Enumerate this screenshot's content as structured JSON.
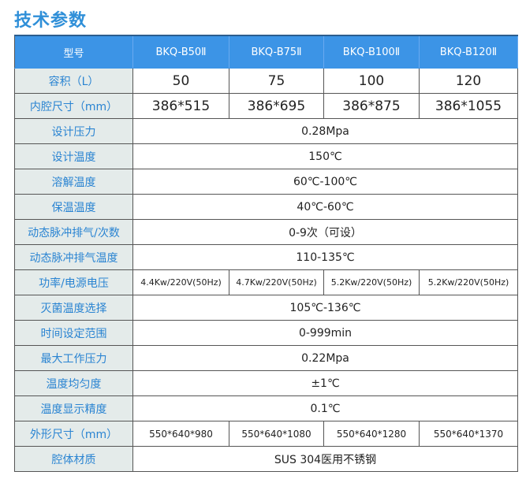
{
  "title": "技术参数",
  "header": [
    "型号",
    "BKQ-B50Ⅱ",
    "BKQ-B75Ⅱ",
    "BKQ-B100Ⅱ",
    "BKQ-B120Ⅱ"
  ],
  "rows": [
    {
      "label": "容积（L）",
      "values": [
        "50",
        "75",
        "100",
        "120"
      ]
    },
    {
      "label": "内腔尺寸（mm）",
      "values": [
        "386*515",
        "386*695",
        "386*875",
        "386*1055"
      ]
    },
    {
      "label": "设计压力",
      "value": "0.28Mpa"
    },
    {
      "label": "设计温度",
      "value": "150℃"
    },
    {
      "label": "溶解温度",
      "value": "60℃-100℃"
    },
    {
      "label": "保温温度",
      "value": "40℃-60℃"
    },
    {
      "label": "动态脉冲排气/次数",
      "value": "0-9次（可设）"
    },
    {
      "label": "动态脉冲排气温度",
      "value": "110-135℃"
    },
    {
      "label": "功率/电源电压",
      "values": [
        "4.4Kw/220V(50Hz)",
        "4.7Kw/220V(50Hz)",
        "5.2Kw/220V(50Hz)",
        "5.2Kw/220V(50Hz)"
      ]
    },
    {
      "label": "灭菌温度选择",
      "value": "105℃-136℃"
    },
    {
      "label": "时间设定范围",
      "value": "0-999min"
    },
    {
      "label": "最大工作压力",
      "value": "0.22Mpa"
    },
    {
      "label": "温度均匀度",
      "value": "±1℃"
    },
    {
      "label": "温度显示精度",
      "value": "0.1℃"
    },
    {
      "label": "外形尺寸（mm）",
      "values": [
        "550*640*980",
        "550*640*1080",
        "550*640*1280",
        "550*640*1370"
      ]
    },
    {
      "label": "腔体材质",
      "value": "SUS 304医用不锈钢"
    }
  ],
  "colors": {
    "header_bg": "#3c94e6",
    "label_bg": "#e4ebea",
    "label_text": "#2a84d2",
    "title": "#2f8fd8"
  }
}
